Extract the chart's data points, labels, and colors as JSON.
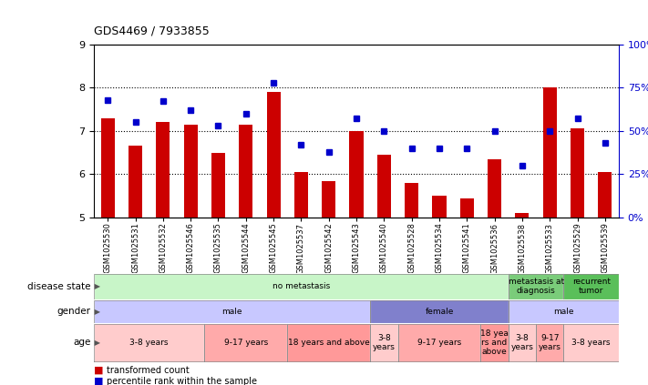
{
  "title": "GDS4469 / 7933855",
  "samples": [
    "GSM1025530",
    "GSM1025531",
    "GSM1025532",
    "GSM1025546",
    "GSM1025535",
    "GSM1025544",
    "GSM1025545",
    "GSM1025537",
    "GSM1025542",
    "GSM1025543",
    "GSM1025540",
    "GSM1025528",
    "GSM1025534",
    "GSM1025541",
    "GSM1025536",
    "GSM1025538",
    "GSM1025533",
    "GSM1025529",
    "GSM1025539"
  ],
  "bar_values": [
    7.3,
    6.65,
    7.2,
    7.15,
    6.5,
    7.15,
    7.9,
    6.05,
    5.85,
    7.0,
    6.45,
    5.8,
    5.5,
    5.45,
    6.35,
    5.1,
    8.0,
    7.05,
    6.05
  ],
  "dot_percentiles": [
    68,
    55,
    67,
    62,
    53,
    60,
    78,
    42,
    38,
    57,
    50,
    40,
    40,
    40,
    50,
    30,
    50,
    57,
    43
  ],
  "ylim_left": [
    5,
    9
  ],
  "ylim_right": [
    0,
    100
  ],
  "yticks_left": [
    5,
    6,
    7,
    8,
    9
  ],
  "yticks_right": [
    0,
    25,
    50,
    75,
    100
  ],
  "bar_color": "#cc0000",
  "dot_color": "#0000cc",
  "disease_state_groups": [
    {
      "label": "no metastasis",
      "start": 0,
      "end": 15,
      "color": "#c8f5c8"
    },
    {
      "label": "metastasis at\ndiagnosis",
      "start": 15,
      "end": 17,
      "color": "#7acc7a"
    },
    {
      "label": "recurrent\ntumor",
      "start": 17,
      "end": 19,
      "color": "#5abf5a"
    }
  ],
  "gender_groups": [
    {
      "label": "male",
      "start": 0,
      "end": 10,
      "color": "#c8c8ff"
    },
    {
      "label": "female",
      "start": 10,
      "end": 15,
      "color": "#8080cc"
    },
    {
      "label": "male",
      "start": 15,
      "end": 19,
      "color": "#c8c8ff"
    }
  ],
  "age_groups": [
    {
      "label": "3-8 years",
      "start": 0,
      "end": 4,
      "color": "#ffcccc"
    },
    {
      "label": "9-17 years",
      "start": 4,
      "end": 7,
      "color": "#ffaaaa"
    },
    {
      "label": "18 years and above",
      "start": 7,
      "end": 10,
      "color": "#ff9999"
    },
    {
      "label": "3-8\nyears",
      "start": 10,
      "end": 11,
      "color": "#ffcccc"
    },
    {
      "label": "9-17 years",
      "start": 11,
      "end": 14,
      "color": "#ffaaaa"
    },
    {
      "label": "18 yea\nrs and\nabove",
      "start": 14,
      "end": 15,
      "color": "#ff9999"
    },
    {
      "label": "3-8\nyears",
      "start": 15,
      "end": 16,
      "color": "#ffcccc"
    },
    {
      "label": "9-17\nyears",
      "start": 16,
      "end": 17,
      "color": "#ffaaaa"
    },
    {
      "label": "3-8 years",
      "start": 17,
      "end": 19,
      "color": "#ffcccc"
    }
  ],
  "row_labels": [
    "disease state",
    "gender",
    "age"
  ],
  "legend_items": [
    {
      "color": "#cc0000",
      "label": "transformed count"
    },
    {
      "color": "#0000cc",
      "label": "percentile rank within the sample"
    }
  ]
}
